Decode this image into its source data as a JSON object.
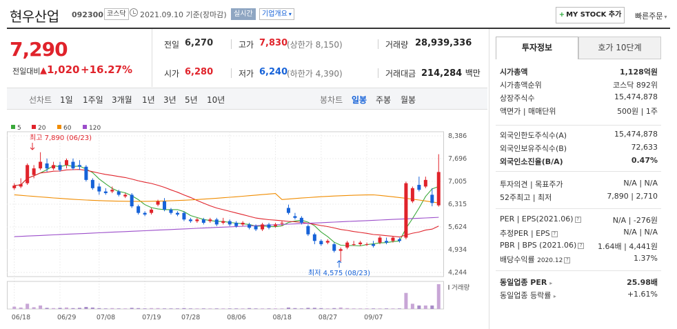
{
  "header": {
    "name": "현우산업",
    "code": "092300",
    "market": "코스닥",
    "date_text": "2021.09.10 기준(장마감)",
    "realtime": "실시간",
    "overview": "기업개요",
    "mystock": "MY STOCK 추가",
    "quick_order": "빠른주문"
  },
  "price": {
    "current": "7,290",
    "change_label": "전일대비",
    "change_value": "1,020",
    "change_pct": "+16.27%"
  },
  "quote": {
    "prev_label": "전일",
    "prev_value": "6,270",
    "high_label": "고가",
    "high_value": "7,830",
    "upper_limit": "(상한가 8,150)",
    "volume_label": "거래량",
    "volume_value": "28,939,336",
    "open_label": "시가",
    "open_value": "6,280",
    "low_label": "저가",
    "low_value": "6,240",
    "lower_limit": "(하한가 4,390)",
    "amount_label": "거래대금",
    "amount_value": "214,284",
    "amount_unit": "백만"
  },
  "period_tabs": {
    "line_label": "선차트",
    "items": [
      "1일",
      "1주일",
      "3개월",
      "1년",
      "3년",
      "5년",
      "10년"
    ],
    "candle_label": "봉차트",
    "candle_items": [
      "일봉",
      "주봉",
      "월봉"
    ]
  },
  "chart_data": {
    "type": "candlestick",
    "legend": [
      {
        "name": "5",
        "color": "#3aa83a"
      },
      {
        "name": "20",
        "color": "#e0232b"
      },
      {
        "name": "60",
        "color": "#f08c00"
      },
      {
        "name": "120",
        "color": "#9b4dca"
      }
    ],
    "y_ticks": [
      "8,386",
      "7,696",
      "7,005",
      "6,315",
      "5,624",
      "4,934",
      "4,244"
    ],
    "ylim": [
      4244,
      8386
    ],
    "x_ticks": [
      "06/18",
      "06/29",
      "07/08",
      "07/19",
      "07/28",
      "08/06",
      "08/18",
      "08/27",
      "09/07"
    ],
    "high_annotation": "최고 7,890 (06/23)",
    "low_annotation": "최저 4,575 (08/23)",
    "volume_label": "거래량",
    "candles": [
      [
        6800,
        6880,
        6950,
        6750
      ],
      [
        6850,
        6920,
        7100,
        6800
      ],
      [
        6950,
        7500,
        7550,
        6900
      ],
      [
        7200,
        7400,
        7500,
        7100
      ],
      [
        7400,
        7600,
        7890,
        7350
      ],
      [
        7550,
        7400,
        7700,
        7300
      ],
      [
        7400,
        7500,
        7600,
        7350
      ],
      [
        7500,
        7350,
        7600,
        7300
      ],
      [
        7500,
        7650,
        7700,
        7400
      ],
      [
        7600,
        7400,
        7700,
        7350
      ],
      [
        7500,
        7450,
        7650,
        7350
      ],
      [
        7450,
        7050,
        7500,
        7000
      ],
      [
        7050,
        6800,
        7100,
        6750
      ],
      [
        6850,
        6700,
        6950,
        6600
      ],
      [
        6700,
        6650,
        6800,
        6600
      ],
      [
        6700,
        6750,
        6850,
        6650
      ],
      [
        6700,
        6600,
        6750,
        6550
      ],
      [
        6550,
        6600,
        6650,
        6500
      ],
      [
        6600,
        6250,
        6650,
        6200
      ],
      [
        6250,
        6050,
        6300,
        6000
      ],
      [
        6050,
        6000,
        6100,
        5950
      ],
      [
        6050,
        6150,
        6200,
        6000
      ],
      [
        6300,
        6400,
        6450,
        6250
      ],
      [
        6400,
        6150,
        6500,
        6100
      ],
      [
        6150,
        6050,
        6200,
        6000
      ],
      [
        6050,
        6000,
        6100,
        5950
      ],
      [
        6050,
        5850,
        6100,
        5800
      ],
      [
        5850,
        5800,
        5900,
        5750
      ],
      [
        5800,
        5850,
        5900,
        5750
      ],
      [
        5850,
        5750,
        5900,
        5700
      ],
      [
        5800,
        5850,
        5900,
        5750
      ],
      [
        5850,
        5700,
        5900,
        5650
      ],
      [
        5750,
        5800,
        5900,
        5700
      ],
      [
        5800,
        5700,
        5850,
        5650
      ],
      [
        5750,
        5650,
        5800,
        5600
      ],
      [
        5700,
        5750,
        5800,
        5650
      ],
      [
        5700,
        5600,
        5750,
        5550
      ],
      [
        5650,
        5550,
        5700,
        5500
      ],
      [
        5550,
        5700,
        5750,
        5500
      ],
      [
        5700,
        5600,
        5750,
        5550
      ],
      [
        5650,
        5700,
        5750,
        5600
      ],
      [
        5750,
        5750,
        5800,
        5650
      ],
      [
        6200,
        6050,
        6300,
        6000
      ],
      [
        5950,
        5900,
        6050,
        5850
      ],
      [
        5900,
        5750,
        5950,
        5700
      ],
      [
        5650,
        5400,
        5700,
        5350
      ],
      [
        5400,
        5200,
        5450,
        5100
      ],
      [
        5200,
        5100,
        5250,
        5050
      ],
      [
        5150,
        5200,
        5250,
        5100
      ],
      [
        5100,
        4900,
        5150,
        4850
      ],
      [
        4900,
        4950,
        5000,
        4575
      ],
      [
        5000,
        5150,
        5200,
        4950
      ],
      [
        5100,
        5100,
        5200,
        5050
      ],
      [
        5100,
        5150,
        5200,
        5050
      ],
      [
        5100,
        5100,
        5150,
        5050
      ],
      [
        5100,
        5050,
        5200,
        5000
      ],
      [
        5150,
        5300,
        5350,
        5100
      ],
      [
        5200,
        5150,
        5300,
        5100
      ],
      [
        5200,
        5300,
        5350,
        5150
      ],
      [
        5250,
        5200,
        5300,
        5150
      ],
      [
        5300,
        6950,
        7000,
        5250
      ],
      [
        6400,
        6800,
        6850,
        6350
      ],
      [
        6900,
        6750,
        7150,
        6700
      ],
      [
        6850,
        7050,
        7150,
        6800
      ],
      [
        6600,
        6350,
        6800,
        6250
      ],
      [
        6280,
        7290,
        7830,
        6240
      ]
    ],
    "volumes": [
      8,
      5,
      18,
      6,
      12,
      4,
      3,
      4,
      5,
      3,
      4,
      7,
      5,
      3,
      2,
      3,
      2,
      2,
      4,
      3,
      2,
      3,
      3,
      2,
      2,
      2,
      3,
      2,
      2,
      2,
      2,
      2,
      2,
      2,
      2,
      2,
      3,
      2,
      2,
      2,
      2,
      2,
      5,
      3,
      2,
      4,
      4,
      3,
      2,
      3,
      5,
      3,
      2,
      2,
      2,
      2,
      2,
      2,
      2,
      2,
      55,
      18,
      12,
      12,
      12,
      85
    ]
  },
  "invest": {
    "tab_invest": "투자정보",
    "tab_hoga": "호가 10단계",
    "rows_a": [
      {
        "k": "시가총액",
        "v": "1,128억원",
        "bold": true
      },
      {
        "k": "시가총액순위",
        "v": "코스닥 892위"
      },
      {
        "k": "상장주식수",
        "v": "15,474,878"
      },
      {
        "k": "액면가 | 매매단위",
        "v": "500원 | 1주"
      }
    ],
    "rows_b": [
      {
        "k": "외국인한도주식수(A)",
        "v": "15,474,878"
      },
      {
        "k": "외국인보유주식수(B)",
        "v": "72,633"
      },
      {
        "k": "외국인소진율(B/A)",
        "v": "0.47%",
        "bold": true
      }
    ],
    "opinion_k": "투자의견 | 목표주가",
    "opinion_v": "N/A | N/A",
    "w52_k": "52주최고 | 최저",
    "w52_v": "7,890 | 2,710",
    "per_k": "PER | EPS(2021.06)",
    "per_v": "N/A | -276원",
    "est_k": "추정PER | EPS",
    "est_v": "N/A | N/A",
    "pbr_k": "PBR | BPS (2021.06)",
    "pbr_v1": "1.64배",
    "pbr_v2": "4,441원",
    "div_k": "배당수익률",
    "div_date": "2020.12",
    "div_v": "1.37%",
    "ind_per_k": "동일업종 PER",
    "ind_per_v": "25.98배",
    "ind_rate_k": "동일업종 등락률",
    "ind_rate_v": "+1.61%"
  }
}
